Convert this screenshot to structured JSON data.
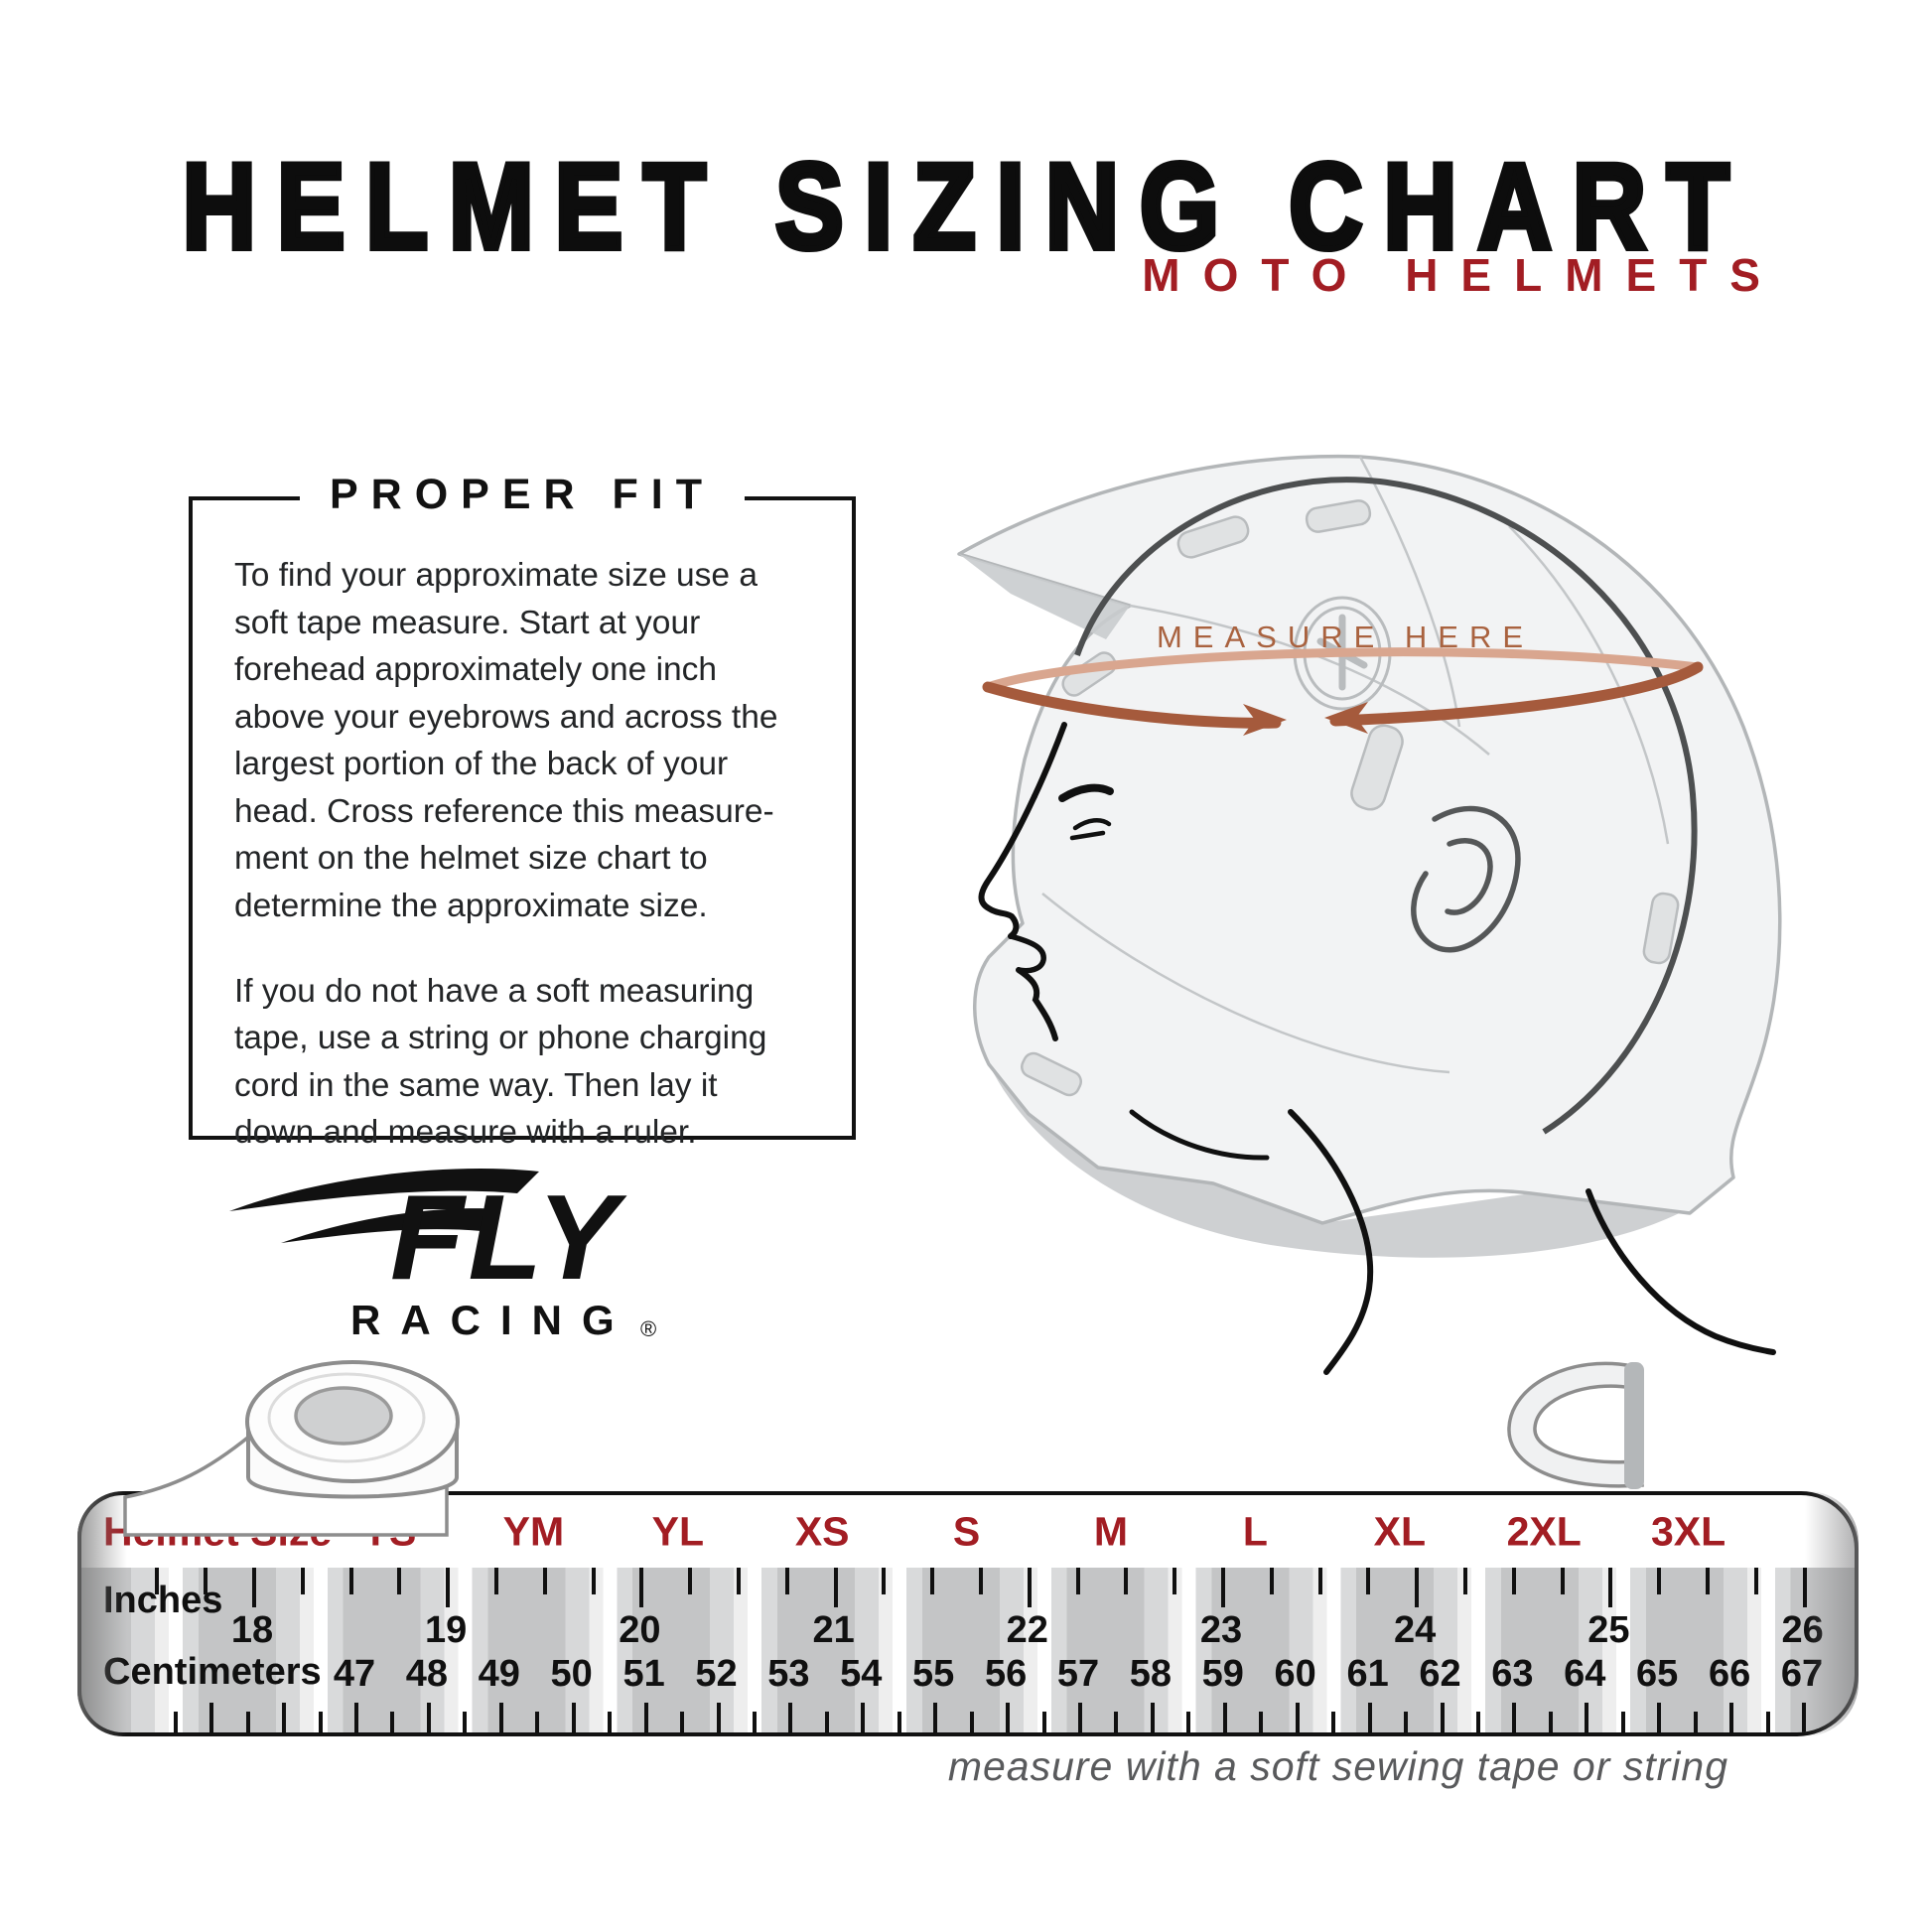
{
  "header": {
    "title": "HELMET SIZING CHART",
    "subtitle": "MOTO HELMETS"
  },
  "proper_fit": {
    "heading": "PROPER FIT",
    "paragraph1": "To find your approximate size use a\nsoft tape measure. Start at your\nforehead approximately one inch\nabove your eyebrows and across the\nlargest portion of the back of your\nhead. Cross reference this measure-\nment on the helmet size chart to\ndetermine the approximate size.",
    "paragraph2": "If you do not have a soft measuring\ntape, use a string or phone charging\ncord in the same way. Then lay it\ndown and measure with a ruler."
  },
  "logo": {
    "brand": "FLY",
    "sub": "RACING",
    "registered": "®"
  },
  "helmet": {
    "measure_label": "MEASURE HERE"
  },
  "tape": {
    "size_row_label": "Helmet Size",
    "sizes": [
      "YS",
      "YM",
      "YL",
      "XS",
      "S",
      "M",
      "L",
      "XL",
      "2XL",
      "3XL"
    ],
    "inches_label": "Inches",
    "inches": [
      18,
      19,
      20,
      21,
      22,
      23,
      24,
      25,
      26
    ],
    "cm_label": "Centimeters",
    "centimeters": [
      47,
      48,
      49,
      50,
      51,
      52,
      53,
      54,
      55,
      56,
      57,
      58,
      59,
      60,
      61,
      62,
      63,
      64,
      65,
      66,
      67
    ]
  },
  "caption": "measure with a soft sewing tape or string",
  "colors": {
    "accent_red": "#A21D23",
    "rust": "#A9623F",
    "rust_light": "#D9A68F",
    "body_text": "#232527",
    "caption_gray": "#595A5C"
  },
  "chart_data": {
    "type": "table",
    "title": "Helmet Sizing Chart - Moto Helmets",
    "columns": [
      "Helmet Size",
      "Inches scale",
      "Centimeters scale"
    ],
    "sizes": [
      "YS",
      "YM",
      "YL",
      "XS",
      "S",
      "M",
      "L",
      "XL",
      "2XL",
      "3XL"
    ],
    "inches_scale_range": [
      18,
      26
    ],
    "centimeters_scale_range": [
      47,
      67
    ]
  }
}
